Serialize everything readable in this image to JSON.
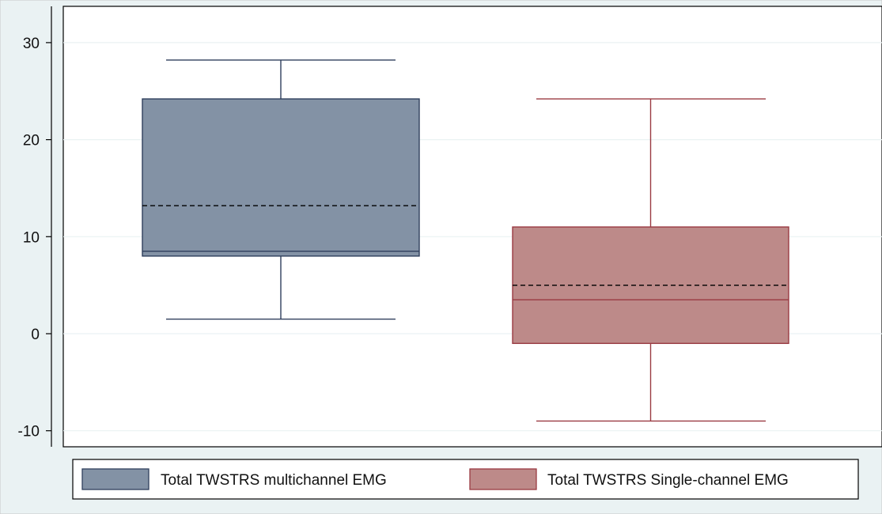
{
  "colors": {
    "outer_bg": "#eaf2f3",
    "plot_bg": "#ffffff",
    "grid": "#eaf2f3",
    "series_1_fill": "#8392a5",
    "series_1_line": "#2f3f5c",
    "series_2_fill": "#bd8a89",
    "series_2_line": "#9a3a42",
    "mean_line": "#000000"
  },
  "chart_data": {
    "type": "box",
    "title": "",
    "xlabel": "",
    "ylabel": "",
    "ylim": [
      -10.5,
      31.5
    ],
    "yticks": [
      30,
      20,
      10,
      0,
      -10
    ],
    "grid": true,
    "legend_position": "bottom",
    "series": [
      {
        "name": "Total TWSTRS multichannel EMG",
        "whisker_low": 1.5,
        "q1": 8.0,
        "median": 8.5,
        "mean": 13.2,
        "q3": 24.2,
        "whisker_high": 28.2
      },
      {
        "name": "Total TWSTRS Single-channel EMG",
        "whisker_low": -9.0,
        "q1": -1.0,
        "median": 3.5,
        "mean": 5.0,
        "q3": 11.0,
        "whisker_high": 24.2
      }
    ]
  }
}
